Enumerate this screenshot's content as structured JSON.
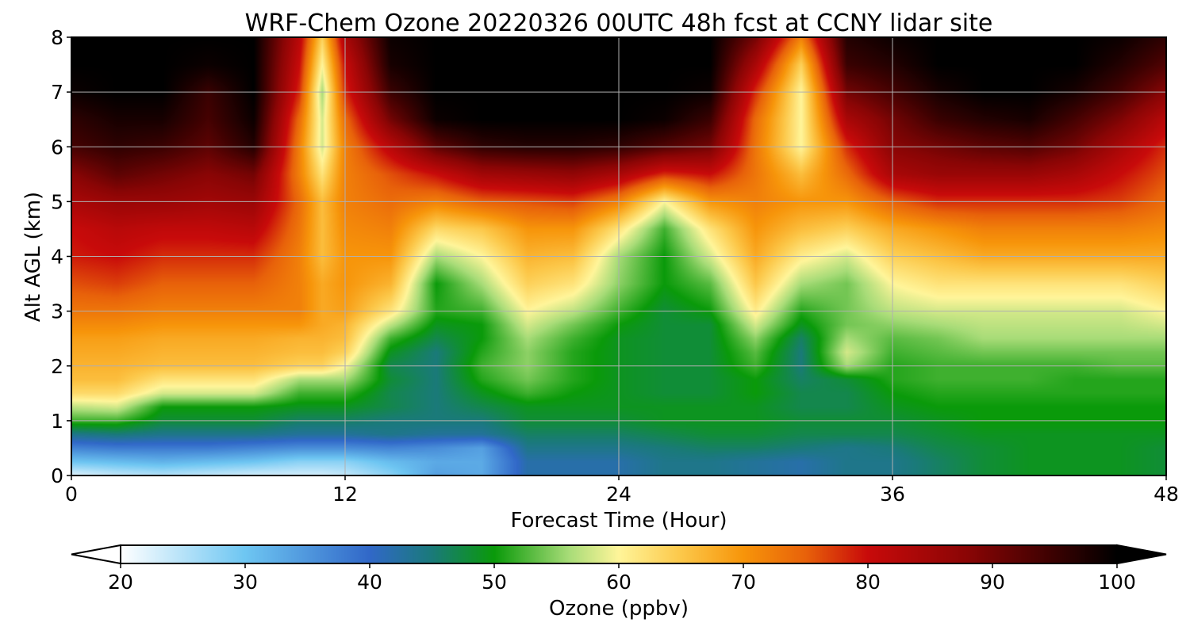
{
  "chart_data": {
    "type": "heatmap",
    "title": "WRF-Chem Ozone  20220326 00UTC 48h fcst at CCNY lidar site",
    "xlabel": "Forecast Time (Hour)",
    "ylabel": "Alt AGL (km)",
    "xlim": [
      0,
      48
    ],
    "ylim": [
      0,
      8
    ],
    "xticks": [
      0,
      12,
      24,
      36,
      48
    ],
    "yticks": [
      0,
      1,
      2,
      3,
      4,
      5,
      6,
      7,
      8
    ],
    "grid": true,
    "colorbar": {
      "label": "Ozone  (ppbv)",
      "orientation": "horizontal",
      "min": 20,
      "max": 100,
      "ticks": [
        20,
        30,
        40,
        50,
        60,
        70,
        80,
        90,
        100
      ],
      "extend": "both",
      "colors": [
        {
          "v": 20,
          "c": "#ffffff"
        },
        {
          "v": 30,
          "c": "#6ec6f2"
        },
        {
          "v": 40,
          "c": "#3168c8"
        },
        {
          "v": 45,
          "c": "#1a7a7a"
        },
        {
          "v": 50,
          "c": "#0a9a0a"
        },
        {
          "v": 56,
          "c": "#a8dc78"
        },
        {
          "v": 60,
          "c": "#fff59a"
        },
        {
          "v": 65,
          "c": "#fcc84a"
        },
        {
          "v": 70,
          "c": "#f7950a"
        },
        {
          "v": 75,
          "c": "#e8620a"
        },
        {
          "v": 80,
          "c": "#c80a0a"
        },
        {
          "v": 88,
          "c": "#8a0505"
        },
        {
          "v": 95,
          "c": "#3a0101"
        },
        {
          "v": 100,
          "c": "#000000"
        }
      ]
    },
    "x_hours": [
      0,
      2,
      4,
      6,
      8,
      10,
      11,
      12,
      14,
      16,
      18,
      20,
      22,
      24,
      26,
      28,
      30,
      32,
      34,
      36,
      38,
      40,
      42,
      44,
      46,
      48
    ],
    "alt_km": [
      0,
      0.25,
      0.5,
      0.75,
      1,
      1.25,
      1.5,
      1.75,
      2,
      2.25,
      2.5,
      2.75,
      3,
      3.5,
      4,
      4.5,
      5,
      5.5,
      6,
      6.5,
      7,
      7.5,
      8
    ],
    "values_ppbv": [
      [
        22,
        24,
        25,
        24,
        23,
        23,
        23,
        24,
        28,
        34,
        33,
        42,
        42,
        42,
        44,
        44,
        43,
        42,
        44,
        44,
        46,
        48,
        49,
        49,
        49,
        48
      ],
      [
        30,
        31,
        32,
        31,
        30,
        28,
        28,
        28,
        31,
        33,
        33,
        42,
        42,
        42,
        44,
        44,
        43,
        42,
        44,
        44,
        46,
        48,
        49,
        49,
        49,
        48
      ],
      [
        37,
        38,
        38,
        38,
        37,
        36,
        36,
        36,
        37,
        36,
        34,
        44,
        44,
        44,
        45,
        46,
        46,
        45,
        44,
        45,
        47,
        48,
        49,
        49,
        49,
        48
      ],
      [
        44,
        45,
        44,
        44,
        44,
        43,
        43,
        43,
        44,
        43,
        43,
        46,
        46,
        46,
        47,
        48,
        48,
        47,
        47,
        47,
        48,
        49,
        49,
        49,
        49,
        49
      ],
      [
        52,
        52,
        48,
        48,
        48,
        46,
        46,
        46,
        45,
        45,
        45,
        48,
        48,
        48,
        49,
        49,
        49,
        48,
        48,
        48,
        49,
        50,
        50,
        50,
        50,
        50
      ],
      [
        57,
        58,
        50,
        50,
        50,
        49,
        49,
        49,
        47,
        45,
        47,
        49,
        49,
        49,
        49,
        49,
        49,
        47,
        47,
        49,
        50,
        50,
        50,
        50,
        50,
        50
      ],
      [
        63,
        63,
        58,
        58,
        58,
        52,
        52,
        52,
        47,
        45,
        49,
        52,
        50,
        49,
        48,
        48,
        50,
        47,
        47,
        50,
        51,
        51,
        51,
        51,
        51,
        51
      ],
      [
        66,
        66,
        62,
        62,
        62,
        56,
        56,
        56,
        48,
        45,
        51,
        54,
        51,
        49,
        48,
        48,
        50,
        46,
        48,
        51,
        52,
        52,
        52,
        51,
        51,
        51
      ],
      [
        67,
        67,
        66,
        66,
        66,
        64,
        64,
        60,
        47,
        45,
        52,
        55,
        51,
        49,
        48,
        48,
        52,
        45,
        56,
        51,
        52,
        52,
        52,
        52,
        53,
        53
      ],
      [
        68,
        68,
        67,
        67,
        67,
        66,
        66,
        64,
        49,
        45,
        51,
        55,
        51,
        49,
        48,
        48,
        53,
        45,
        58,
        52,
        53,
        54,
        54,
        54,
        54,
        54
      ],
      [
        69,
        69,
        68,
        68,
        68,
        67,
        67,
        66,
        52,
        47,
        50,
        56,
        52,
        49,
        48,
        48,
        55,
        46,
        56,
        53,
        54,
        56,
        56,
        56,
        56,
        56
      ],
      [
        71,
        71,
        70,
        70,
        70,
        70,
        68,
        67,
        57,
        49,
        50,
        58,
        54,
        50,
        48,
        48,
        58,
        49,
        54,
        55,
        56,
        57,
        57,
        57,
        57,
        58
      ],
      [
        73,
        73,
        72,
        72,
        72,
        72,
        68,
        69,
        62,
        51,
        52,
        60,
        57,
        52,
        48,
        50,
        61,
        51,
        54,
        57,
        58,
        58,
        58,
        58,
        58,
        60
      ],
      [
        76,
        77,
        75,
        75,
        75,
        72,
        68,
        70,
        67,
        50,
        56,
        64,
        62,
        55,
        50,
        53,
        65,
        56,
        54,
        60,
        62,
        62,
        62,
        62,
        62,
        64
      ],
      [
        79,
        80,
        78,
        78,
        78,
        72,
        66,
        70,
        70,
        56,
        60,
        67,
        66,
        56,
        50,
        58,
        68,
        61,
        58,
        64,
        66,
        68,
        68,
        68,
        68,
        68
      ],
      [
        80,
        82,
        81,
        81,
        82,
        73,
        66,
        71,
        72,
        63,
        65,
        70,
        70,
        62,
        52,
        62,
        70,
        66,
        64,
        68,
        70,
        72,
        72,
        72,
        72,
        71
      ],
      [
        84,
        86,
        86,
        85,
        86,
        74,
        66,
        72,
        74,
        72,
        75,
        76,
        77,
        72,
        60,
        70,
        72,
        70,
        70,
        75,
        78,
        78,
        78,
        78,
        77,
        74
      ],
      [
        88,
        92,
        90,
        88,
        90,
        72,
        62,
        72,
        76,
        80,
        85,
        86,
        87,
        84,
        78,
        80,
        73,
        66,
        74,
        84,
        86,
        86,
        86,
        84,
        80,
        76
      ],
      [
        94,
        96,
        95,
        92,
        97,
        72,
        58,
        72,
        82,
        92,
        96,
        97,
        97,
        96,
        93,
        90,
        73,
        60,
        78,
        88,
        90,
        92,
        93,
        90,
        84,
        78
      ],
      [
        96,
        98,
        98,
        94,
        99,
        74,
        58,
        74,
        90,
        99,
        100,
        100,
        100,
        100,
        99,
        95,
        74,
        60,
        84,
        90,
        95,
        97,
        98,
        94,
        89,
        82
      ],
      [
        99,
        100,
        100,
        95,
        100,
        78,
        56,
        78,
        95,
        100,
        100,
        100,
        100,
        100,
        100,
        99,
        78,
        60,
        90,
        94,
        98,
        100,
        100,
        98,
        94,
        88
      ],
      [
        100,
        100,
        100,
        99,
        100,
        80,
        60,
        80,
        98,
        100,
        100,
        100,
        100,
        100,
        100,
        100,
        84,
        64,
        95,
        97,
        100,
        100,
        100,
        100,
        97,
        93
      ],
      [
        100,
        100,
        100,
        100,
        100,
        82,
        64,
        84,
        99,
        100,
        100,
        100,
        100,
        100,
        100,
        100,
        90,
        72,
        97,
        99,
        100,
        100,
        100,
        100,
        99,
        96
      ]
    ]
  }
}
